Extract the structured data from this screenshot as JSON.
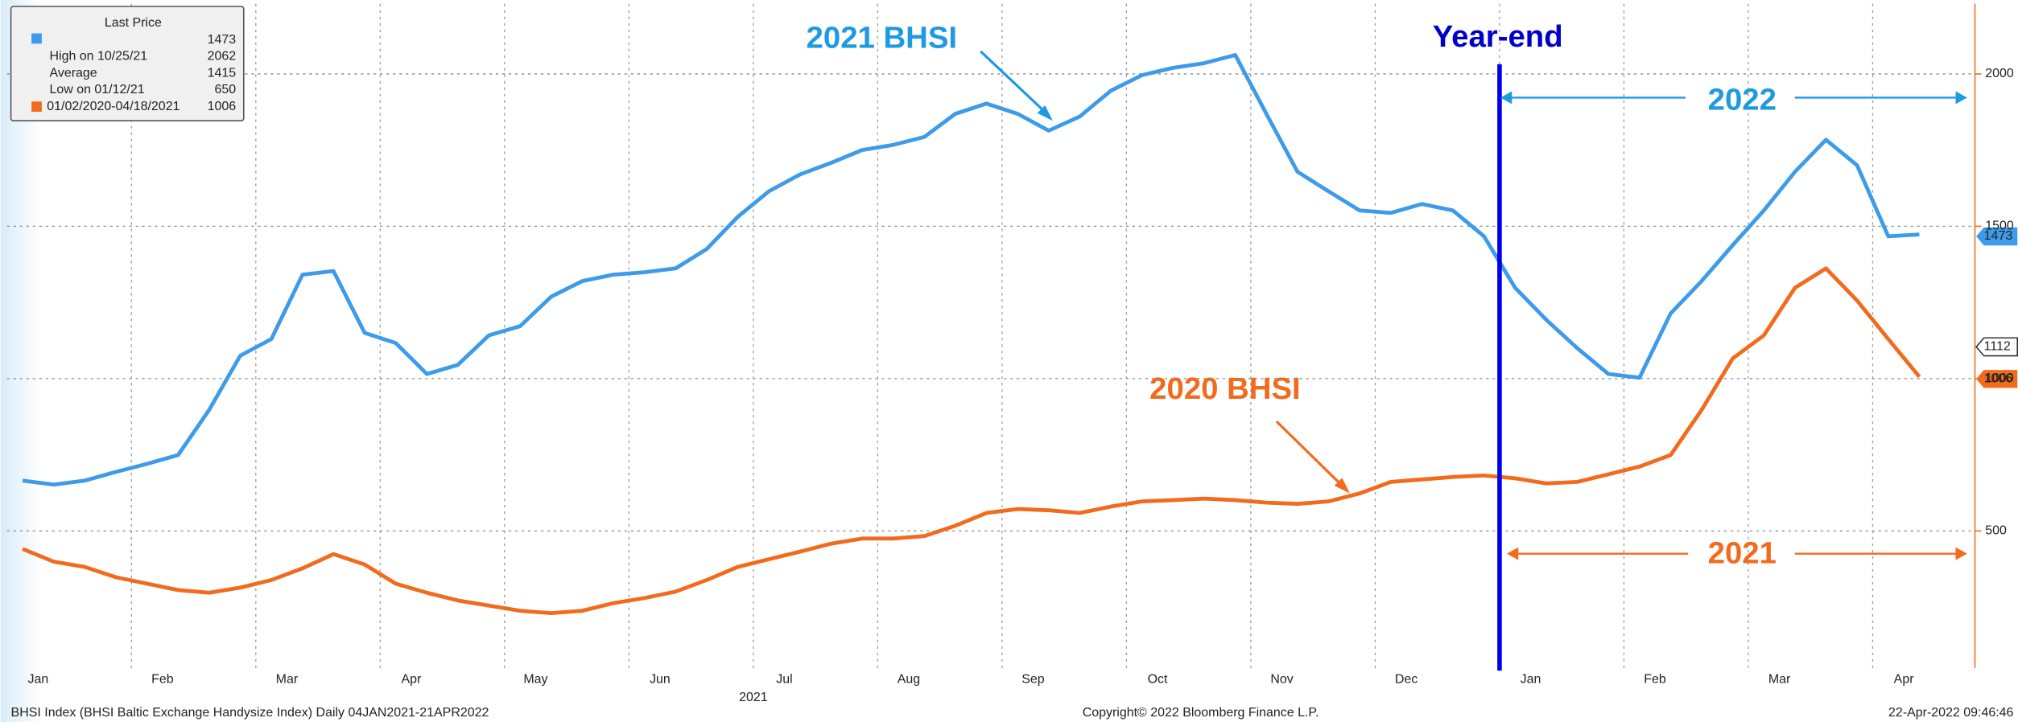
{
  "chart_data": {
    "type": "line",
    "categories": [
      "Jan",
      null,
      null,
      null,
      "Feb",
      null,
      null,
      null,
      "Mar",
      null,
      null,
      null,
      "Apr",
      null,
      null,
      null,
      "May",
      null,
      null,
      null,
      "Jun",
      null,
      null,
      null,
      "Jul",
      null,
      null,
      null,
      "Aug",
      null,
      null,
      null,
      "Sep",
      null,
      null,
      null,
      "Oct",
      null,
      null,
      null,
      "Nov",
      null,
      null,
      null,
      "Dec",
      null,
      null,
      null,
      "Jan",
      null,
      null,
      null,
      "Feb",
      null,
      null,
      null,
      "Mar",
      null,
      null,
      null,
      "Apr",
      null
    ],
    "year_labels": [
      "2021",
      "2022"
    ],
    "series": [
      {
        "name": "2021 BHSI",
        "color": "#3d9be9",
        "values": [
          665,
          652,
          665,
          694,
          720,
          749,
          897,
          1075,
          1130,
          1341,
          1353,
          1150,
          1117,
          1015,
          1045,
          1142,
          1172,
          1269,
          1320,
          1341,
          1349,
          1362,
          1425,
          1531,
          1615,
          1670,
          1708,
          1750,
          1767,
          1793,
          1869,
          1903,
          1869,
          1814,
          1860,
          1945,
          1996,
          2020,
          2035,
          2062,
          1869,
          1679,
          1615,
          1552,
          1544,
          1573,
          1552,
          1467,
          1298,
          1193,
          1100,
          1015,
          1003,
          1214,
          1320,
          1438,
          1552,
          1679,
          1784,
          1700,
          1467,
          1473
        ]
      },
      {
        "name": "2020 BHSI",
        "color": "#f26b1d",
        "values": [
          441,
          399,
          382,
          348,
          327,
          306,
          297,
          314,
          339,
          377,
          424,
          390,
          327,
          297,
          272,
          255,
          238,
          230,
          238,
          263,
          280,
          301,
          339,
          382,
          407,
          432,
          458,
          475,
          475,
          483,
          517,
          559,
          572,
          568,
          559,
          580,
          597,
          601,
          606,
          601,
          593,
          589,
          597,
          623,
          661,
          669,
          677,
          682,
          673,
          656,
          661,
          686,
          711,
          749,
          897,
          1066,
          1142,
          1298,
          1362,
          1256,
          1130,
          1006
        ]
      }
    ],
    "ylim": [
      50,
      2230
    ],
    "yticks": [
      500,
      1000,
      1500,
      2000
    ],
    "grid": true,
    "annotations": {
      "year_end": "Year-end",
      "label_2021_bhsi": "2021 BHSI",
      "label_2020_bhsi": "2020 BHSI",
      "span_2022": "2022",
      "span_2021": "2021",
      "price_tag_mid": "1112"
    },
    "legend_box": {
      "title": "Last Price",
      "rows": [
        [
          "",
          "1473"
        ],
        [
          "High on 10/25/21",
          "2062"
        ],
        [
          "Average",
          "1415"
        ],
        [
          "Low on 01/12/21",
          "650"
        ],
        [
          "01/02/2020-04/18/2021",
          "1006"
        ]
      ]
    },
    "footer": {
      "left": "BHSI Index (BHSI Baltic Exchange Handysize Index)  Daily 04JAN2021-21APR2022",
      "center": "Copyright© 2022 Bloomberg Finance L.P.",
      "right": "22-Apr-2022 09:46:46"
    }
  }
}
